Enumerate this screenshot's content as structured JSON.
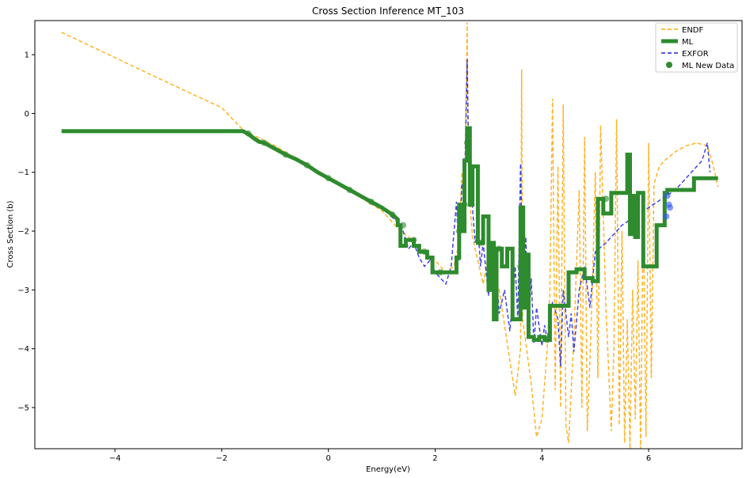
{
  "chart_data": {
    "type": "line",
    "title": "Cross Section Inference MT_103",
    "xlabel": "Energy(eV)",
    "ylabel": "Cross Section (b)",
    "xlim": [
      -5.5,
      7.75
    ],
    "ylim": [
      -5.7,
      1.58
    ],
    "xticks": [
      -4,
      -2,
      0,
      2,
      4,
      6
    ],
    "yticks": [
      1,
      0,
      -1,
      -2,
      -3,
      -4,
      -5
    ],
    "xtick_labels": [
      "−4",
      "−2",
      "0",
      "2",
      "4",
      "6"
    ],
    "ytick_labels": [
      "1",
      "0",
      "−1",
      "−2",
      "−3",
      "−4",
      "−5"
    ],
    "legend_position": "top-right",
    "series": [
      {
        "name": "ENDF",
        "style": "dashed",
        "color": "#FFA500",
        "x": [
          -5.0,
          -4.0,
          -3.0,
          -2.0,
          -1.6,
          -1.0,
          0.0,
          1.0,
          1.3,
          1.5,
          1.8,
          2.0,
          2.2,
          2.35,
          2.45,
          2.5,
          2.55,
          2.6,
          2.62,
          2.65,
          2.7,
          2.8,
          2.9,
          3.0,
          3.1,
          3.2,
          3.3,
          3.4,
          3.5,
          3.6,
          3.62,
          3.64,
          3.7,
          3.8,
          3.9,
          4.0,
          4.1,
          4.15,
          4.2,
          4.25,
          4.3,
          4.35,
          4.4,
          4.45,
          4.5,
          4.6,
          4.7,
          4.75,
          4.8,
          4.85,
          4.9,
          4.95,
          5.0,
          5.05,
          5.1,
          5.2,
          5.3,
          5.35,
          5.4,
          5.45,
          5.5,
          5.55,
          5.6,
          5.65,
          5.7,
          5.75,
          5.8,
          5.85,
          5.9,
          5.95,
          6.0,
          6.05,
          6.1,
          6.2,
          6.3,
          6.5,
          6.7,
          6.9,
          7.1,
          7.2,
          7.3
        ],
        "y": [
          1.38,
          0.95,
          0.52,
          0.1,
          -0.28,
          -0.55,
          -1.1,
          -1.65,
          -1.95,
          -2.1,
          -2.35,
          -2.5,
          -2.7,
          -2.6,
          -2.2,
          -1.0,
          -1.8,
          1.55,
          -0.6,
          -1.5,
          -2.1,
          -2.5,
          -2.9,
          -2.4,
          -3.2,
          -3.0,
          -3.6,
          -4.2,
          -4.8,
          -4.0,
          0.75,
          -3.5,
          -3.9,
          -4.6,
          -5.5,
          -5.2,
          -4.0,
          -3.0,
          0.25,
          -4.7,
          -0.9,
          -5.0,
          0.15,
          -5.3,
          -5.6,
          -3.8,
          -1.3,
          -5.0,
          -0.4,
          -5.4,
          -4.2,
          -2.8,
          -1.0,
          -4.5,
          -0.2,
          -3.3,
          -5.4,
          -4.0,
          -0.1,
          -5.3,
          -2.0,
          -5.6,
          -3.5,
          -5.7,
          -3.0,
          -5.2,
          -2.5,
          -5.7,
          -1.6,
          -5.5,
          -0.5,
          -4.5,
          -1.2,
          -0.9,
          -0.8,
          -0.65,
          -0.55,
          -0.5,
          -0.55,
          -0.85,
          -1.25
        ]
      },
      {
        "name": "ML",
        "style": "solid-thick",
        "color": "#2E8B2E",
        "x": [
          -5.0,
          -1.6,
          -1.5,
          -1.4,
          -1.3,
          -1.2,
          -1.1,
          -1.0,
          -0.8,
          -0.6,
          -0.4,
          -0.2,
          0.0,
          0.2,
          0.4,
          0.6,
          0.8,
          1.0,
          1.2,
          1.3,
          1.3,
          1.35,
          1.35,
          1.45,
          1.45,
          1.6,
          1.6,
          1.7,
          1.7,
          1.85,
          1.85,
          1.95,
          1.95,
          2.4,
          2.4,
          2.45,
          2.45,
          2.5,
          2.5,
          2.55,
          2.55,
          2.6,
          2.6,
          2.65,
          2.65,
          2.7,
          2.7,
          2.8,
          2.8,
          2.9,
          2.9,
          3.0,
          3.0,
          3.05,
          3.05,
          3.1,
          3.1,
          3.15,
          3.15,
          3.25,
          3.25,
          3.35,
          3.35,
          3.45,
          3.45,
          3.6,
          3.6,
          3.65,
          3.65,
          3.7,
          3.7,
          3.75,
          3.75,
          3.85,
          3.85,
          3.95,
          3.95,
          4.05,
          4.05,
          4.15,
          4.15,
          4.5,
          4.5,
          4.65,
          4.65,
          4.8,
          4.8,
          4.95,
          4.95,
          5.05,
          5.05,
          5.15,
          5.15,
          5.3,
          5.3,
          5.45,
          5.45,
          5.6,
          5.6,
          5.65,
          5.65,
          5.7,
          5.7,
          5.75,
          5.75,
          5.8,
          5.8,
          5.9,
          5.9,
          6.15,
          6.15,
          6.3,
          6.3,
          6.35,
          6.35,
          6.85,
          6.85,
          7.3
        ],
        "y": [
          -0.3,
          -0.3,
          -0.35,
          -0.42,
          -0.48,
          -0.5,
          -0.55,
          -0.6,
          -0.7,
          -0.78,
          -0.88,
          -1.0,
          -1.1,
          -1.2,
          -1.3,
          -1.4,
          -1.5,
          -1.6,
          -1.72,
          -1.8,
          -1.9,
          -1.9,
          -2.25,
          -2.25,
          -2.15,
          -2.15,
          -2.25,
          -2.25,
          -2.35,
          -2.35,
          -2.45,
          -2.45,
          -2.7,
          -2.7,
          -2.45,
          -2.45,
          -1.55,
          -1.55,
          -2.0,
          -2.0,
          -0.8,
          -0.8,
          -0.25,
          -0.25,
          -1.55,
          -1.55,
          -0.9,
          -0.9,
          -2.2,
          -2.2,
          -1.75,
          -1.75,
          -3.0,
          -3.0,
          -2.2,
          -2.2,
          -3.5,
          -3.5,
          -2.3,
          -2.3,
          -2.6,
          -2.6,
          -2.3,
          -2.3,
          -3.5,
          -3.5,
          -1.6,
          -1.6,
          -3.3,
          -3.3,
          -2.4,
          -2.4,
          -3.8,
          -3.8,
          -3.85,
          -3.85,
          -3.8,
          -3.8,
          -3.85,
          -3.85,
          -3.27,
          -3.27,
          -2.7,
          -2.7,
          -2.65,
          -2.65,
          -2.8,
          -2.8,
          -2.85,
          -2.85,
          -1.45,
          -1.45,
          -1.7,
          -1.7,
          -1.35,
          -1.35,
          -1.35,
          -1.35,
          -0.7,
          -0.7,
          -2.05,
          -2.05,
          -1.4,
          -1.4,
          -2.1,
          -2.1,
          -1.35,
          -1.35,
          -2.6,
          -2.6,
          -1.9,
          -1.9,
          -1.35,
          -1.35,
          -1.3,
          -1.3,
          -1.1,
          -1.1
        ]
      },
      {
        "name": "EXFOR",
        "style": "dashed",
        "color": "#2222DD",
        "x": [
          -1.6,
          -1.0,
          -0.5,
          0.0,
          0.5,
          1.0,
          1.3,
          1.4,
          1.5,
          1.6,
          1.7,
          1.8,
          1.9,
          2.0,
          2.2,
          2.3,
          2.4,
          2.45,
          2.5,
          2.55,
          2.6,
          2.62,
          2.65,
          2.7,
          2.75,
          2.8,
          2.85,
          2.9,
          3.0,
          3.05,
          3.1,
          3.15,
          3.2,
          3.3,
          3.4,
          3.45,
          3.5,
          3.55,
          3.6,
          3.65,
          3.7,
          3.75,
          3.8,
          3.85,
          3.9,
          4.0,
          4.05,
          4.1,
          4.2,
          4.3,
          4.35,
          4.4,
          4.5,
          4.55,
          4.6,
          4.7,
          4.8,
          4.9,
          5.0,
          5.2,
          5.5,
          6.0,
          6.5,
          7.0,
          7.1,
          7.15
        ],
        "y": [
          -0.3,
          -0.6,
          -0.85,
          -1.1,
          -1.35,
          -1.6,
          -1.85,
          -2.0,
          -2.3,
          -2.2,
          -2.45,
          -2.6,
          -2.5,
          -2.7,
          -2.9,
          -2.6,
          -1.5,
          -2.5,
          -1.2,
          -1.4,
          0.92,
          -0.4,
          -1.0,
          -1.6,
          -2.2,
          -1.9,
          -2.6,
          -2.2,
          -3.1,
          -2.5,
          -3.0,
          -2.7,
          -3.4,
          -3.0,
          -3.7,
          -3.2,
          -2.6,
          -3.5,
          -0.85,
          -3.3,
          -2.1,
          -3.7,
          -2.8,
          -3.9,
          -3.3,
          -3.95,
          -3.6,
          -3.85,
          -3.2,
          -3.5,
          -4.3,
          -3.0,
          -3.8,
          -3.4,
          -4.05,
          -3.0,
          -2.6,
          -3.3,
          -2.35,
          -2.2,
          -1.9,
          -1.6,
          -1.3,
          -0.8,
          -0.5,
          -1.0
        ]
      },
      {
        "name": "ML New Data",
        "style": "scatter",
        "color": "#2E8B2E",
        "x": [
          -1.5,
          -1.2,
          -0.8,
          -0.4,
          0.0,
          0.4,
          0.8,
          1.2,
          1.4,
          1.6,
          1.8,
          2.1,
          2.45,
          2.55,
          2.6,
          2.85,
          3.2,
          3.6,
          4.1,
          5.2,
          6.35,
          6.38,
          6.4,
          6.33
        ],
        "y": [
          -0.34,
          -0.5,
          -0.7,
          -0.88,
          -1.1,
          -1.3,
          -1.5,
          -1.72,
          -1.9,
          -2.15,
          -2.35,
          -2.7,
          -2.0,
          -1.55,
          -0.5,
          -2.2,
          -2.3,
          -2.6,
          -3.85,
          -1.45,
          -1.4,
          -1.55,
          -1.6,
          -1.75
        ]
      }
    ]
  }
}
